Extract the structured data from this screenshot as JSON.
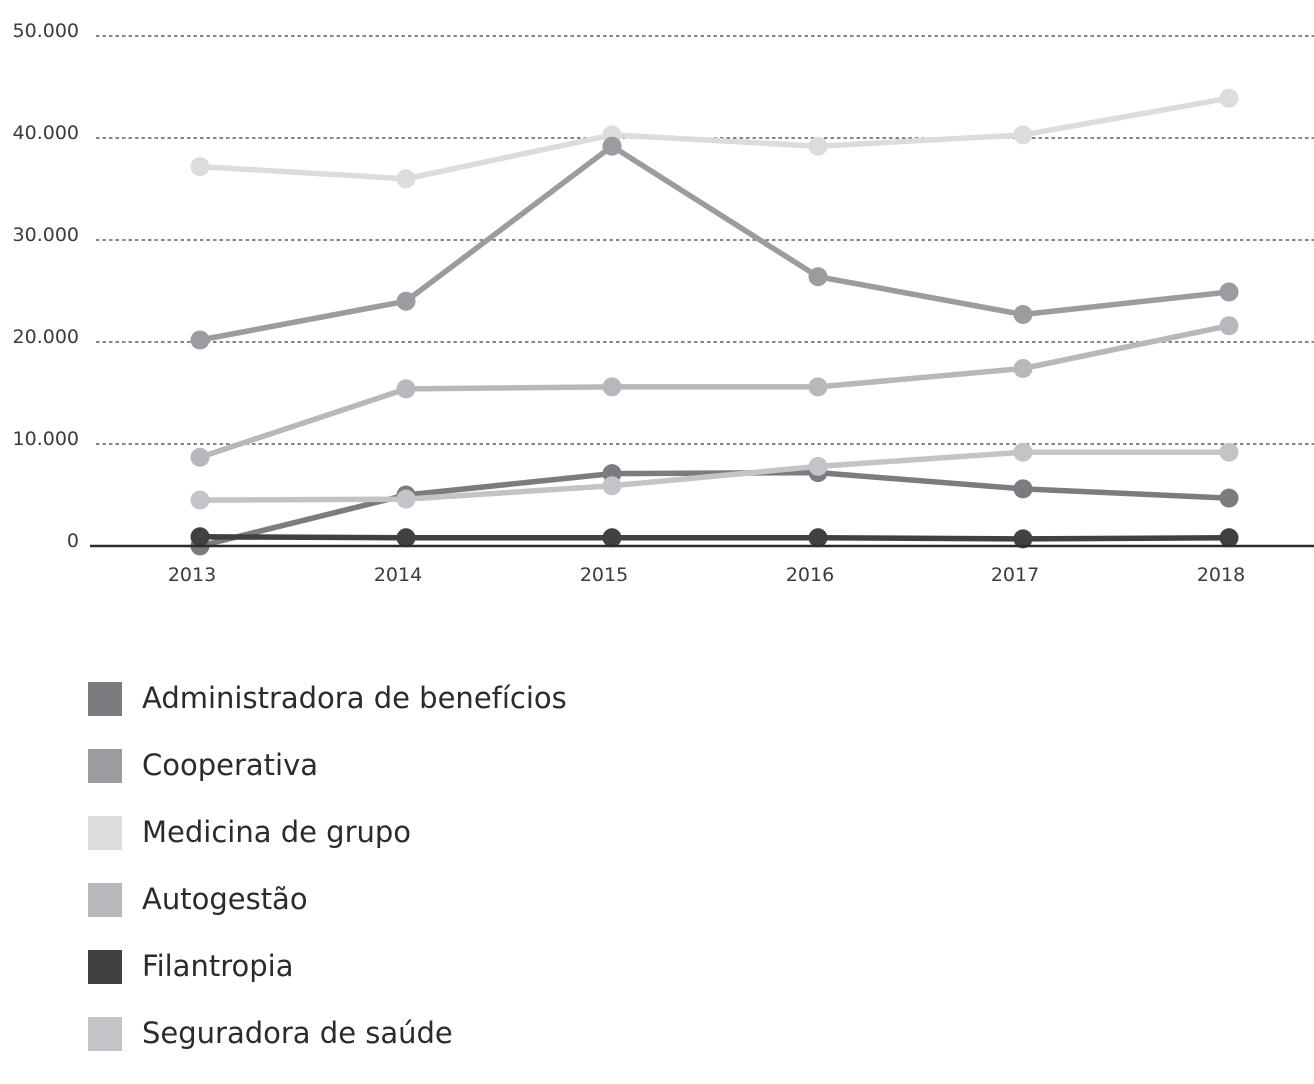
{
  "chart_data": {
    "type": "line",
    "title": "",
    "xlabel": "",
    "ylabel": "",
    "x": [
      "2013",
      "2014",
      "2015",
      "2016",
      "2017",
      "2018"
    ],
    "yticks": [
      "0",
      "10.000",
      "20.000",
      "30.000",
      "40.000",
      "50.000"
    ],
    "ylim": [
      0,
      50000
    ],
    "grid": "horizontal dashed",
    "legend_position": "bottom",
    "series": [
      {
        "name": "Administradora de benefícios",
        "color": "#7b7b80",
        "values": [
          0,
          5000,
          7100,
          7200,
          5600,
          4700
        ]
      },
      {
        "name": "Cooperativa",
        "color": "#9b9ba0",
        "values": [
          20200,
          24000,
          39200,
          26400,
          22700,
          24900
        ]
      },
      {
        "name": "Medicina de grupo",
        "color": "#dcdcde",
        "values": [
          37200,
          36000,
          40300,
          39200,
          40300,
          43900
        ]
      },
      {
        "name": "Autogestão",
        "color": "#b8b8bc",
        "values": [
          8700,
          15400,
          15600,
          15600,
          17400,
          21600
        ]
      },
      {
        "name": "Filantropia",
        "color": "#414143",
        "values": [
          900,
          800,
          800,
          800,
          700,
          800
        ]
      },
      {
        "name": "Seguradora de saúde",
        "color": "#c4c4c8",
        "values": [
          4500,
          4600,
          5900,
          7800,
          9200,
          9200
        ]
      }
    ]
  }
}
